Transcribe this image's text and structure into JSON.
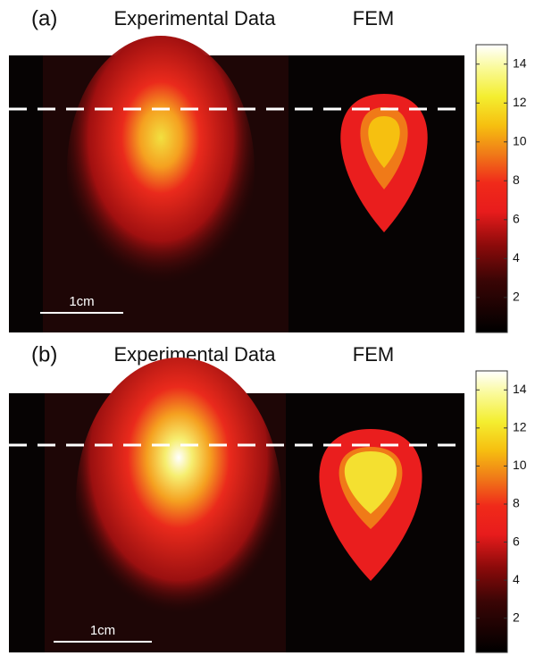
{
  "panels": [
    {
      "label": "(a)",
      "title_left": "Experimental Data",
      "title_right": "FEM",
      "scale_label": "1cm",
      "colorbar": {
        "range": [
          0.2,
          15
        ],
        "ticks": [
          2,
          4,
          6,
          8,
          10,
          12,
          14
        ]
      }
    },
    {
      "label": "(b)",
      "title_left": "Experimental Data",
      "title_right": "FEM",
      "scale_label": "1cm",
      "colorbar": {
        "range": [
          0.2,
          15
        ],
        "ticks": [
          2,
          4,
          6,
          8,
          10,
          12,
          14
        ]
      }
    }
  ]
}
